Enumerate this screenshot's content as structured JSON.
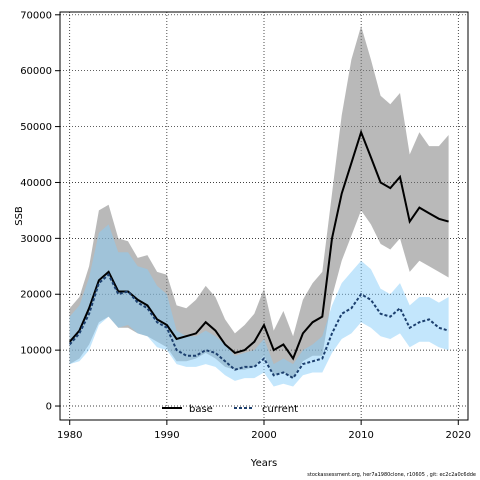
{
  "chart_data": {
    "type": "line",
    "title": "",
    "xlabel": "Years",
    "ylabel": "SSB",
    "xlim": [
      1979,
      2021
    ],
    "ylim": [
      -2500,
      70500
    ],
    "x_ticks": [
      1980,
      1990,
      2000,
      2010,
      2020
    ],
    "y_ticks": [
      0,
      10000,
      20000,
      30000,
      40000,
      50000,
      60000,
      70000
    ],
    "grid": true,
    "legend_position": "bottom-center",
    "x": [
      1980,
      1981,
      1982,
      1983,
      1984,
      1985,
      1986,
      1987,
      1988,
      1989,
      1990,
      1991,
      1992,
      1993,
      1994,
      1995,
      1996,
      1997,
      1998,
      1999,
      2000,
      2001,
      2002,
      2003,
      2004,
      2005,
      2006,
      2007,
      2008,
      2009,
      2010,
      2011,
      2012,
      2013,
      2014,
      2015,
      2016,
      2017,
      2018,
      2019
    ],
    "series": [
      {
        "name": "base",
        "color": "#000000",
        "band_color": "#808080",
        "values": [
          11500,
          13500,
          17500,
          22500,
          24000,
          20500,
          20500,
          19000,
          18000,
          15500,
          14500,
          12000,
          12500,
          13000,
          15000,
          13500,
          11000,
          9500,
          10000,
          11500,
          14500,
          10000,
          11000,
          8500,
          13000,
          15000,
          16000,
          30000,
          38000,
          43500,
          49000,
          44500,
          40000,
          39000,
          41000,
          33000,
          35500,
          34500,
          33500,
          33000
        ],
        "upper": [
          17500,
          19500,
          25000,
          35000,
          36000,
          30000,
          29500,
          26500,
          27000,
          24000,
          23500,
          18000,
          17500,
          19000,
          21500,
          19500,
          15500,
          13000,
          14500,
          16500,
          21000,
          13500,
          17000,
          12500,
          19000,
          22000,
          24000,
          38000,
          52000,
          62000,
          68000,
          62000,
          55500,
          54000,
          56000,
          45000,
          49000,
          46500,
          46500,
          48500
        ],
        "lower": [
          7500,
          8500,
          11000,
          15000,
          16000,
          14000,
          14000,
          13000,
          12500,
          11500,
          10500,
          8000,
          8000,
          8500,
          9500,
          8500,
          7000,
          6500,
          6500,
          7000,
          9000,
          5500,
          6000,
          5000,
          8000,
          9000,
          9000,
          19500,
          26000,
          30500,
          35000,
          32500,
          29000,
          28000,
          30000,
          24000,
          26000,
          25000,
          24000,
          23000
        ]
      },
      {
        "name": "current",
        "color": "#1c3f6e",
        "band_color": "#87cefa",
        "values": [
          11000,
          13000,
          16500,
          22000,
          23500,
          20000,
          20500,
          18500,
          17500,
          15000,
          14000,
          10000,
          9000,
          9000,
          10000,
          9500,
          8000,
          6500,
          7000,
          7000,
          8500,
          5500,
          6000,
          5000,
          7500,
          8000,
          8500,
          13000,
          16500,
          17500,
          20000,
          19000,
          16500,
          16000,
          17500,
          14000,
          15000,
          15500,
          14000,
          13500
        ],
        "upper": [
          16000,
          18000,
          23000,
          31000,
          32500,
          27500,
          27500,
          25000,
          24500,
          21500,
          20000,
          13500,
          12500,
          12500,
          13500,
          12500,
          11000,
          9000,
          9500,
          10000,
          12000,
          7500,
          8500,
          7500,
          10000,
          11000,
          12500,
          18000,
          22000,
          24000,
          26000,
          24500,
          21000,
          20000,
          22000,
          18000,
          19500,
          19500,
          18500,
          19500
        ],
        "lower": [
          7500,
          8000,
          10000,
          14500,
          16000,
          14000,
          14500,
          13000,
          12500,
          10500,
          10000,
          7500,
          7000,
          7000,
          7500,
          7000,
          5500,
          4500,
          5000,
          5000,
          6000,
          3500,
          4000,
          3500,
          5500,
          6000,
          6000,
          9500,
          12000,
          13000,
          15000,
          14000,
          12500,
          12000,
          13000,
          10500,
          11500,
          11500,
          10500,
          10000
        ]
      }
    ]
  },
  "footer": {
    "text": "stockassessment.org, her7a1980clone, r10605 , git: ec2c2a0c6dde"
  }
}
